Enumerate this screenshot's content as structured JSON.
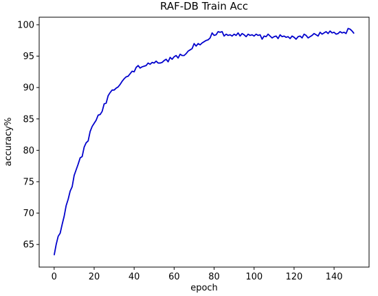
{
  "chart_data": {
    "type": "line",
    "title": "RAF-DB Train Acc",
    "x_label": "epoch",
    "y_label": "accuracy%",
    "x": [
      0,
      1,
      2,
      3,
      4,
      5,
      6,
      7,
      8,
      9,
      10,
      11,
      12,
      13,
      14,
      15,
      16,
      17,
      18,
      19,
      20,
      21,
      22,
      23,
      24,
      25,
      26,
      27,
      28,
      29,
      30,
      31,
      32,
      33,
      34,
      35,
      36,
      37,
      38,
      39,
      40,
      41,
      42,
      43,
      44,
      45,
      46,
      47,
      48,
      49,
      50,
      51,
      52,
      53,
      54,
      55,
      56,
      57,
      58,
      59,
      60,
      61,
      62,
      63,
      64,
      65,
      66,
      67,
      68,
      69,
      70,
      71,
      72,
      73,
      74,
      75,
      76,
      77,
      78,
      79,
      80,
      81,
      82,
      83,
      84,
      85,
      86,
      87,
      88,
      89,
      90,
      91,
      92,
      93,
      94,
      95,
      96,
      97,
      98,
      99,
      100,
      101,
      102,
      103,
      104,
      105,
      106,
      107,
      108,
      109,
      110,
      111,
      112,
      113,
      114,
      115,
      116,
      117,
      118,
      119,
      120,
      121,
      122,
      123,
      124,
      125,
      126,
      127,
      128,
      129,
      130,
      131,
      132,
      133,
      134,
      135,
      136,
      137,
      138,
      139,
      140,
      141,
      142,
      143,
      144,
      145,
      146,
      147,
      148,
      149,
      150
    ],
    "series": [
      {
        "name": "train acc",
        "color": "#0000cc",
        "values": [
          63.3,
          65,
          66.3,
          66.8,
          68.2,
          69.5,
          71.2,
          72.2,
          73.5,
          74.2,
          76,
          76.9,
          77.8,
          78.8,
          79,
          80.5,
          81.2,
          81.5,
          83,
          83.8,
          84.3,
          84.8,
          85.6,
          85.7,
          86.2,
          87.4,
          87.5,
          88.7,
          89.2,
          89.6,
          89.6,
          89.9,
          90.1,
          90.5,
          91,
          91.4,
          91.7,
          91.8,
          92.2,
          92.6,
          92.5,
          93.2,
          93.5,
          93.1,
          93.3,
          93.4,
          93.5,
          93.9,
          93.7,
          94,
          93.9,
          94.2,
          93.9,
          93.9,
          94,
          94.3,
          94.5,
          94.1,
          94.8,
          94.5,
          94.9,
          95.1,
          94.7,
          95.3,
          95.1,
          95.1,
          95.4,
          95.8,
          96,
          96.2,
          97,
          96.6,
          97,
          96.8,
          97.1,
          97.3,
          97.5,
          97.6,
          97.9,
          98.7,
          98.3,
          98.4,
          98.9,
          98.8,
          98.9,
          98.2,
          98.5,
          98.3,
          98.4,
          98.2,
          98.5,
          98.3,
          98.7,
          98.2,
          98.6,
          98.4,
          98.1,
          98.5,
          98.3,
          98.4,
          98.2,
          98.5,
          98.3,
          98.4,
          97.7,
          98.2,
          98.1,
          98.5,
          98.2,
          97.9,
          98.1,
          98.2,
          97.8,
          98.4,
          98.1,
          98.2,
          98,
          98.1,
          97.8,
          98.2,
          98,
          97.7,
          98.1,
          98.2,
          97.9,
          98.5,
          98.3,
          97.9,
          98.1,
          98.3,
          98.6,
          98.4,
          98.2,
          98.8,
          98.5,
          98.7,
          98.9,
          98.6,
          99,
          98.7,
          98.8,
          98.5,
          98.6,
          98.9,
          98.7,
          98.8,
          98.6,
          99.4,
          99.3,
          99,
          98.6
        ]
      }
    ],
    "xlim": [
      -7.5,
      157.5
    ],
    "ylim": [
      61.4,
      101.2
    ],
    "xticks": [
      0,
      20,
      40,
      60,
      80,
      100,
      120,
      140
    ],
    "yticks": [
      65,
      70,
      75,
      80,
      85,
      90,
      95,
      100
    ],
    "grid": false
  }
}
